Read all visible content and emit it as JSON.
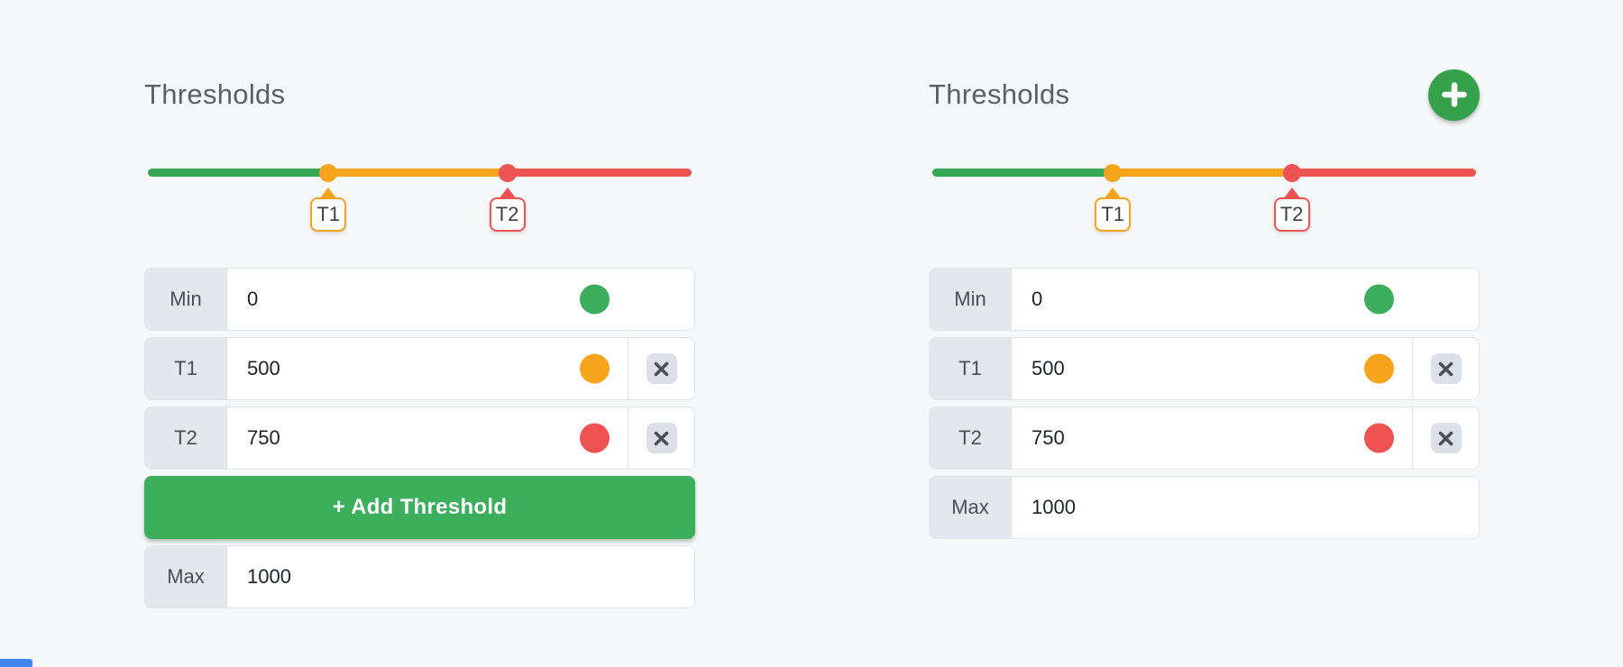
{
  "colors": {
    "background": "#f6f7f9",
    "track_green": "#36a557",
    "track_orange": "#f7a41d",
    "track_red": "#ee5253",
    "indicator_green": "#3bad5c",
    "indicator_orange": "#f7a41d",
    "indicator_red": "#ee5253",
    "add_button_green": "#3cae5c",
    "add_circle_green": "#35a14a",
    "bottom_accent_blue": "#4285f4"
  },
  "panels": [
    {
      "title": "Thresholds",
      "show_add_circle": false,
      "show_add_button": true,
      "add_button_label": "+ Add Threshold",
      "add_button_index": 3,
      "slider": {
        "segments": [
          {
            "name": "green",
            "color": "#36a557",
            "from_pct": 0,
            "to_pct": 33.2
          },
          {
            "name": "orange",
            "color": "#f7a41d",
            "from_pct": 33.2,
            "to_pct": 66.1
          },
          {
            "name": "red",
            "color": "#ee5253",
            "from_pct": 66.1,
            "to_pct": 100
          }
        ],
        "markers": [
          {
            "label": "T1",
            "position_pct": 33.2,
            "color": "#f7a41d"
          },
          {
            "label": "T2",
            "position_pct": 66.1,
            "color": "#ee5253"
          }
        ]
      },
      "rows": [
        {
          "label": "Min",
          "value": "0",
          "indicator_color": "#3bad5c",
          "deletable": false
        },
        {
          "label": "T1",
          "value": "500",
          "indicator_color": "#f7a41d",
          "deletable": true
        },
        {
          "label": "T2",
          "value": "750",
          "indicator_color": "#ee5253",
          "deletable": true
        },
        {
          "label": "Max",
          "value": "1000",
          "indicator_color": null,
          "deletable": false
        }
      ]
    },
    {
      "title": "Thresholds",
      "show_add_circle": true,
      "show_add_button": false,
      "add_button_label": "+ Add Threshold",
      "add_button_index": null,
      "slider": {
        "segments": [
          {
            "name": "green",
            "color": "#36a557",
            "from_pct": 0,
            "to_pct": 33.2
          },
          {
            "name": "orange",
            "color": "#f7a41d",
            "from_pct": 33.2,
            "to_pct": 66.1
          },
          {
            "name": "red",
            "color": "#ee5253",
            "from_pct": 66.1,
            "to_pct": 100
          }
        ],
        "markers": [
          {
            "label": "T1",
            "position_pct": 33.2,
            "color": "#f7a41d"
          },
          {
            "label": "T2",
            "position_pct": 66.1,
            "color": "#ee5253"
          }
        ]
      },
      "rows": [
        {
          "label": "Min",
          "value": "0",
          "indicator_color": "#3bad5c",
          "deletable": false
        },
        {
          "label": "T1",
          "value": "500",
          "indicator_color": "#f7a41d",
          "deletable": true
        },
        {
          "label": "T2",
          "value": "750",
          "indicator_color": "#ee5253",
          "deletable": true
        },
        {
          "label": "Max",
          "value": "1000",
          "indicator_color": null,
          "deletable": false
        }
      ]
    }
  ]
}
